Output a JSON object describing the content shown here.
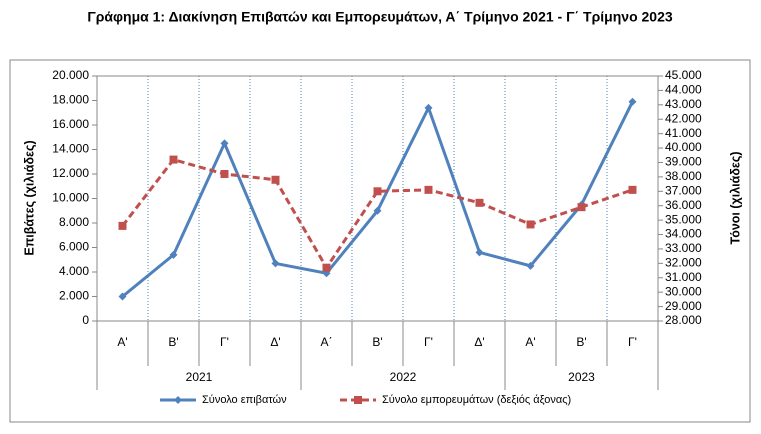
{
  "chart_data": {
    "type": "line",
    "title": "Γράφημα 1: Διακίνηση Επιβατών και Εμπορευμάτων, Α΄ Τρίμηνο 2021 - Γ΄ Τρίμηνο 2023",
    "ylabel": "Επιβάτες  (χιλιάδες)",
    "y2label": "Τόνοι  (χιλιάδες)",
    "category_groups": [
      {
        "label": "2021",
        "categories": [
          "Α'",
          "Β'",
          "Γ'",
          "Δ'"
        ]
      },
      {
        "label": "2022",
        "categories": [
          "Α΄",
          "Β'",
          "Γ'",
          "Δ'"
        ]
      },
      {
        "label": "2023",
        "categories": [
          "Α'",
          "Β'",
          "Γ'"
        ]
      }
    ],
    "series": [
      {
        "name": "Σύνολο επιβατών",
        "color": "#4f81bd",
        "dash": false,
        "marker": "diamond",
        "values": [
          2000,
          5400,
          14500,
          4700,
          3900,
          9000,
          17400,
          5600,
          4500,
          9500,
          17900
        ]
      },
      {
        "name": "Σύνολο εμπορευμάτων (δεξιός άξονας)",
        "color": "#c0504d",
        "dash": true,
        "marker": "square",
        "axis": "y2",
        "values": [
          34600,
          39200,
          38200,
          37800,
          31700,
          37000,
          37100,
          36200,
          34700,
          35900,
          37100
        ]
      }
    ],
    "ylim": [
      0,
      20000
    ],
    "yticks": [
      0,
      {
        "value": 2000,
        "label": "2.000"
      },
      {
        "value": 4000,
        "label": "4.000"
      },
      {
        "value": 6000,
        "label": "6.000"
      },
      {
        "value": 8000,
        "label": "8.000"
      },
      {
        "value": 10000,
        "label": "10.000"
      },
      {
        "value": 12000,
        "label": "12.000"
      },
      {
        "value": 14000,
        "label": "14.000"
      },
      {
        "value": 16000,
        "label": "16.000"
      },
      {
        "value": 18000,
        "label": "18.000"
      },
      {
        "value": 20000,
        "label": "20.000"
      }
    ],
    "y2lim": [
      28000,
      45000
    ],
    "y2ticks": [
      {
        "value": 28000,
        "label": "28.000"
      },
      {
        "value": 29000,
        "label": "29.000"
      },
      {
        "value": 30000,
        "label": "30.000"
      },
      {
        "value": 31000,
        "label": "31.000"
      },
      {
        "value": 32000,
        "label": "32.000"
      },
      {
        "value": 33000,
        "label": "33.000"
      },
      {
        "value": 34000,
        "label": "34.000"
      },
      {
        "value": 35000,
        "label": "35.000"
      },
      {
        "value": 36000,
        "label": "36.000"
      },
      {
        "value": 37000,
        "label": "37.000"
      },
      {
        "value": 38000,
        "label": "38.000"
      },
      {
        "value": 39000,
        "label": "39.000"
      },
      {
        "value": 40000,
        "label": "40.000"
      },
      {
        "value": 41000,
        "label": "41.000"
      },
      {
        "value": 42000,
        "label": "42.000"
      },
      {
        "value": 43000,
        "label": "43.000"
      },
      {
        "value": 44000,
        "label": "44.000"
      },
      {
        "value": 45000,
        "label": "45.000"
      }
    ],
    "grid": "vertical",
    "legend": "bottom"
  }
}
